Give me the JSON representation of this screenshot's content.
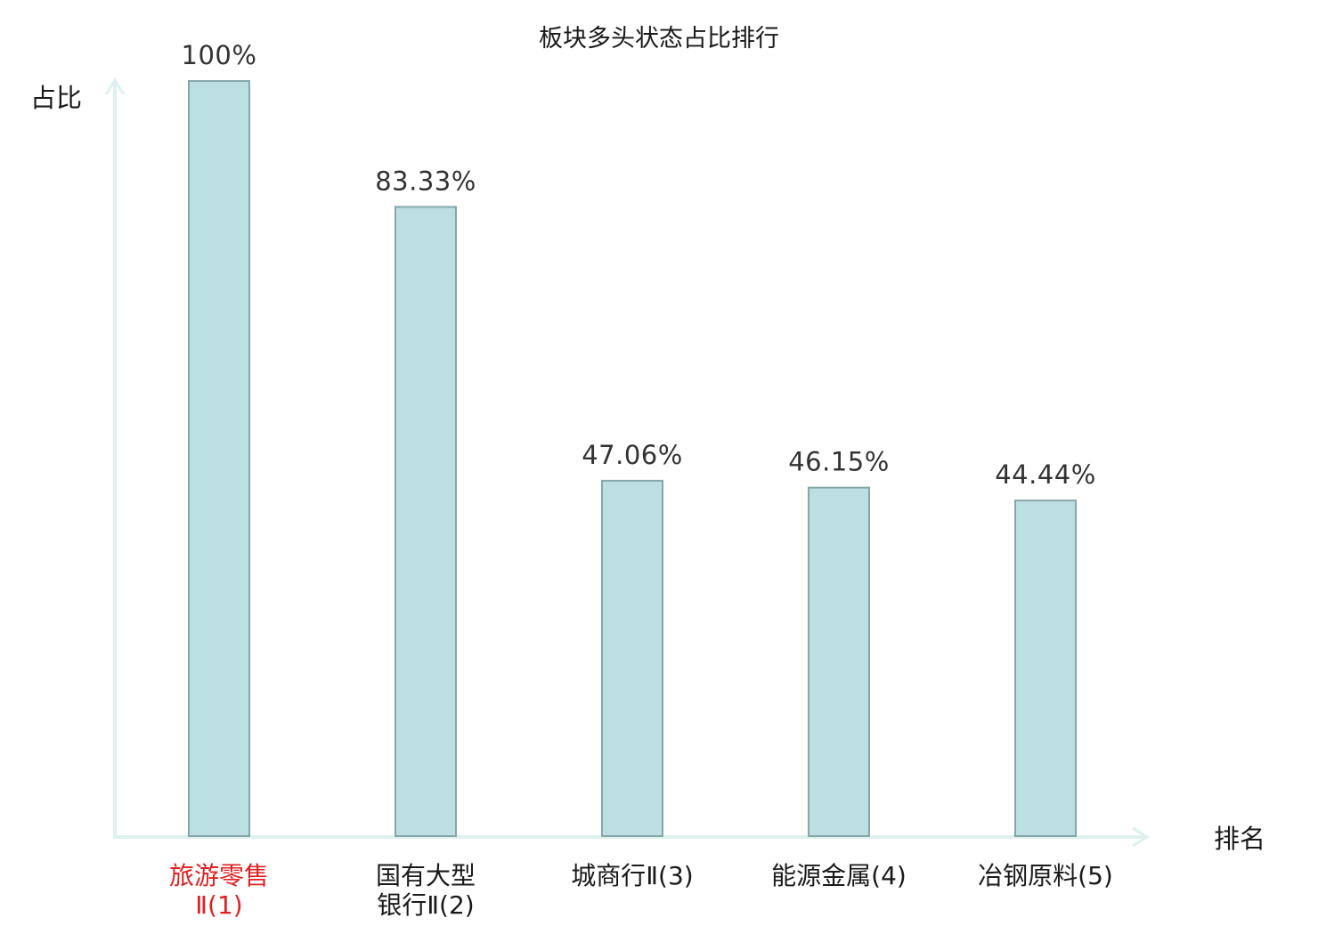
{
  "chart_data": {
    "type": "bar",
    "title": "板块多头状态占比排行",
    "ylabel": "占比",
    "xlabel": "排名",
    "ylim": [
      0,
      100
    ],
    "grid": false,
    "categories": [
      {
        "line1": "旅游零售",
        "line2": "Ⅱ(1)",
        "highlight": true
      },
      {
        "line1": "国有大型",
        "line2": "银行Ⅱ(2)",
        "highlight": false
      },
      {
        "line1": "城商行Ⅱ(3)",
        "line2": "",
        "highlight": false
      },
      {
        "line1": "能源金属(4)",
        "line2": "",
        "highlight": false
      },
      {
        "line1": "冶钢原料(5)",
        "line2": "",
        "highlight": false
      }
    ],
    "values": [
      100,
      83.33,
      47.06,
      46.15,
      44.44
    ],
    "value_labels": [
      "100%",
      "83.33%",
      "47.06%",
      "46.15%",
      "44.44%"
    ],
    "colors": {
      "bar_fill": "#bce0e2",
      "bar_stroke": "#86a6a8",
      "axis": "#ddf1ee",
      "highlight_label": "#e02020"
    }
  }
}
